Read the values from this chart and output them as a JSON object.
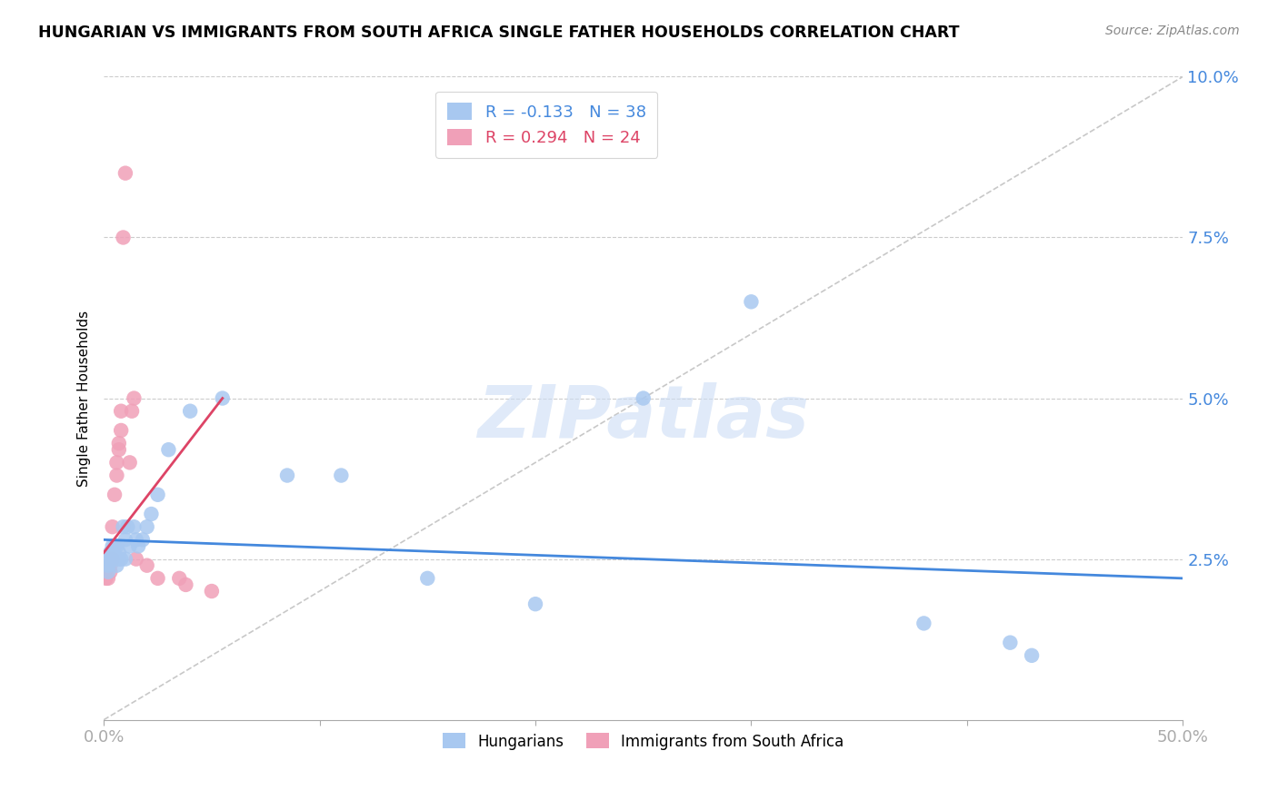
{
  "title": "HUNGARIAN VS IMMIGRANTS FROM SOUTH AFRICA SINGLE FATHER HOUSEHOLDS CORRELATION CHART",
  "source": "Source: ZipAtlas.com",
  "ylabel": "Single Father Households",
  "xlim": [
    0.0,
    0.5
  ],
  "ylim": [
    0.0,
    0.1
  ],
  "yticks": [
    0.0,
    0.025,
    0.05,
    0.075,
    0.1
  ],
  "ytick_labels": [
    "",
    "2.5%",
    "5.0%",
    "7.5%",
    "10.0%"
  ],
  "xticks": [
    0.0,
    0.1,
    0.2,
    0.3,
    0.4,
    0.5
  ],
  "xtick_labels": [
    "0.0%",
    "",
    "",
    "",
    "",
    "50.0%"
  ],
  "blue_color": "#a8c8f0",
  "pink_color": "#f0a0b8",
  "blue_line_color": "#4488dd",
  "pink_line_color": "#dd4466",
  "diagonal_color": "#c8c8c8",
  "legend_R_blue": "-0.133",
  "legend_N_blue": "38",
  "legend_R_pink": "0.294",
  "legend_N_pink": "24",
  "blue_x": [
    0.001,
    0.002,
    0.002,
    0.003,
    0.003,
    0.004,
    0.004,
    0.005,
    0.005,
    0.006,
    0.006,
    0.007,
    0.007,
    0.008,
    0.009,
    0.01,
    0.01,
    0.011,
    0.012,
    0.014,
    0.015,
    0.016,
    0.018,
    0.02,
    0.022,
    0.025,
    0.03,
    0.04,
    0.055,
    0.085,
    0.11,
    0.15,
    0.2,
    0.25,
    0.3,
    0.38,
    0.42,
    0.43
  ],
  "blue_y": [
    0.025,
    0.024,
    0.023,
    0.025,
    0.026,
    0.027,
    0.026,
    0.025,
    0.027,
    0.024,
    0.027,
    0.025,
    0.026,
    0.025,
    0.03,
    0.028,
    0.025,
    0.03,
    0.027,
    0.03,
    0.028,
    0.027,
    0.028,
    0.03,
    0.032,
    0.035,
    0.042,
    0.048,
    0.05,
    0.038,
    0.038,
    0.022,
    0.018,
    0.05,
    0.065,
    0.015,
    0.012,
    0.01
  ],
  "pink_x": [
    0.001,
    0.002,
    0.003,
    0.003,
    0.004,
    0.004,
    0.005,
    0.006,
    0.006,
    0.007,
    0.007,
    0.008,
    0.008,
    0.009,
    0.01,
    0.012,
    0.013,
    0.014,
    0.015,
    0.02,
    0.025,
    0.035,
    0.038,
    0.05
  ],
  "pink_y": [
    0.022,
    0.022,
    0.024,
    0.023,
    0.03,
    0.025,
    0.035,
    0.038,
    0.04,
    0.042,
    0.043,
    0.045,
    0.048,
    0.075,
    0.085,
    0.04,
    0.048,
    0.05,
    0.025,
    0.024,
    0.022,
    0.022,
    0.021,
    0.02
  ],
  "blue_trend_x": [
    0.0,
    0.5
  ],
  "blue_trend_y": [
    0.028,
    0.022
  ],
  "pink_trend_x": [
    0.0,
    0.055
  ],
  "pink_trend_y": [
    0.026,
    0.05
  ],
  "watermark": "ZIPatlas",
  "background_color": "#ffffff",
  "grid_color": "#cccccc"
}
